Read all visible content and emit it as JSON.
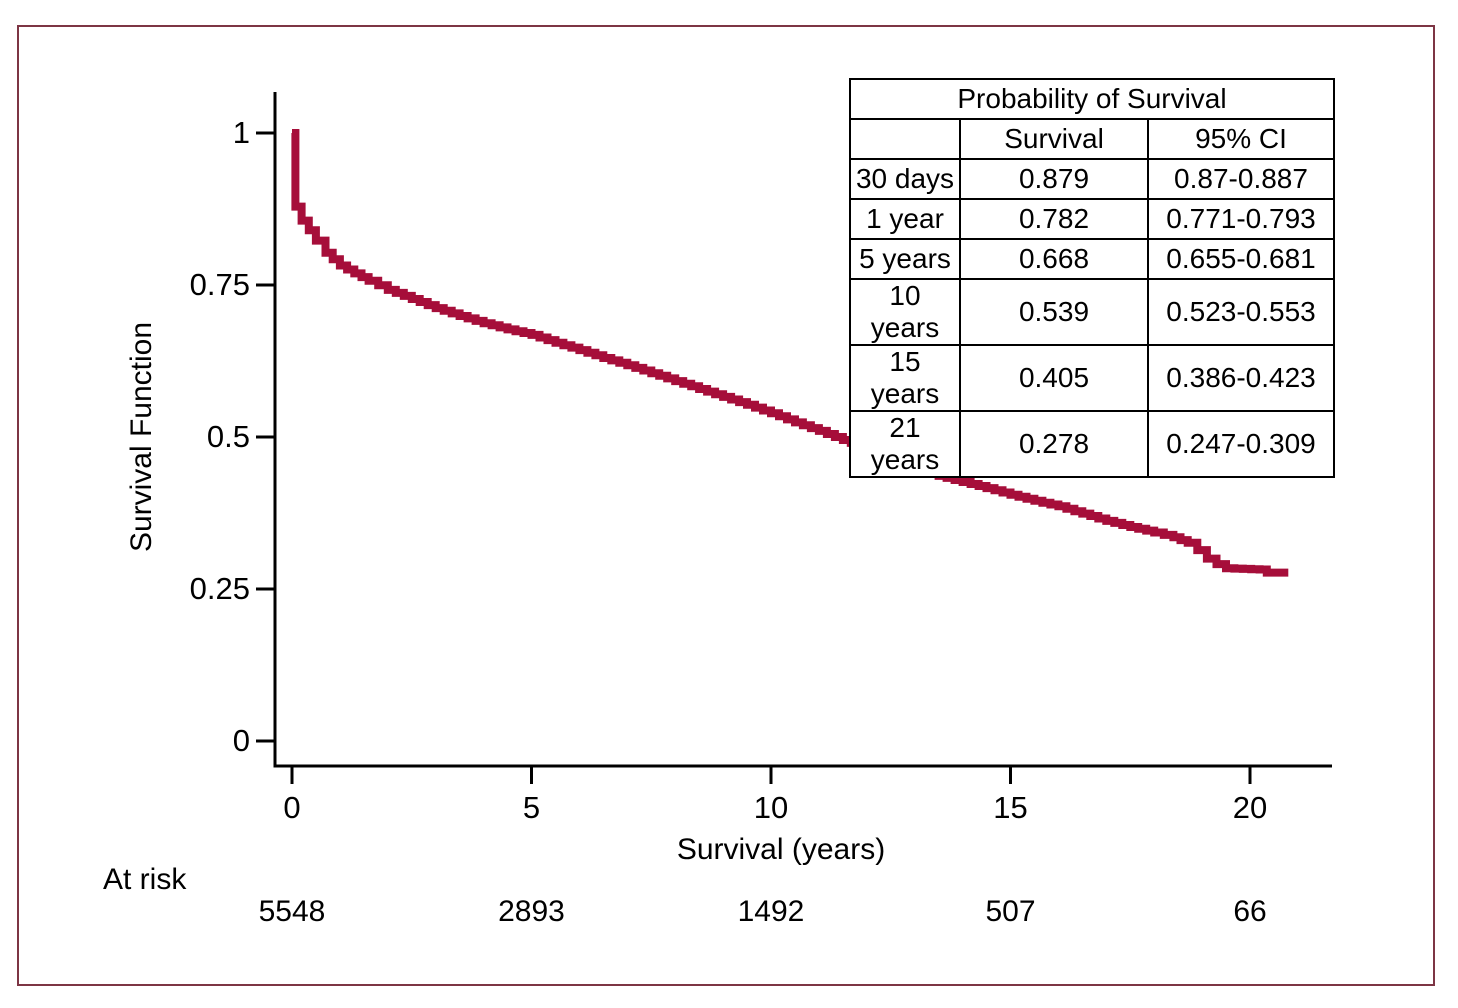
{
  "frame": {
    "border_color": "#7D3544"
  },
  "chart_data": {
    "type": "line",
    "subtype": "kaplan-meier-step",
    "title": "",
    "xlabel": "Survival (years)",
    "ylabel": "Survival Function",
    "xlim": [
      0,
      21.7
    ],
    "ylim": [
      0,
      1.05
    ],
    "x_ticks": [
      0,
      5,
      10,
      15,
      20
    ],
    "y_ticks": [
      0,
      0.25,
      0.5,
      0.75,
      1
    ],
    "y_tick_labels": [
      "0",
      "0.25",
      "0.5",
      "0.75",
      "1"
    ],
    "grid": false,
    "legend": "none",
    "curve_color": "#A60E3A",
    "series": [
      {
        "name": "Survival Function",
        "points": [
          [
            0,
            1.0
          ],
          [
            0.07,
            0.879
          ],
          [
            0.2,
            0.856
          ],
          [
            0.35,
            0.84
          ],
          [
            0.5,
            0.823
          ],
          [
            0.7,
            0.803
          ],
          [
            1,
            0.782
          ],
          [
            1.3,
            0.769
          ],
          [
            1.6,
            0.757
          ],
          [
            2,
            0.742
          ],
          [
            2.5,
            0.727
          ],
          [
            3,
            0.712
          ],
          [
            3.5,
            0.699
          ],
          [
            4,
            0.687
          ],
          [
            4.5,
            0.677
          ],
          [
            5,
            0.668
          ],
          [
            5.5,
            0.655
          ],
          [
            6,
            0.643
          ],
          [
            6.5,
            0.63
          ],
          [
            7,
            0.618
          ],
          [
            7.5,
            0.605
          ],
          [
            8,
            0.592
          ],
          [
            8.5,
            0.579
          ],
          [
            9,
            0.566
          ],
          [
            9.5,
            0.553
          ],
          [
            10,
            0.539
          ],
          [
            10.5,
            0.524
          ],
          [
            11,
            0.51
          ],
          [
            11.5,
            0.495
          ],
          [
            12,
            0.481
          ],
          [
            12.4,
            0.465
          ],
          [
            12.7,
            0.452
          ],
          [
            13,
            0.446
          ],
          [
            13.5,
            0.436
          ],
          [
            14,
            0.426
          ],
          [
            14.5,
            0.416
          ],
          [
            15,
            0.405
          ],
          [
            15.5,
            0.395
          ],
          [
            16,
            0.386
          ],
          [
            16.5,
            0.374
          ],
          [
            17,
            0.362
          ],
          [
            17.5,
            0.352
          ],
          [
            18,
            0.343
          ],
          [
            18.4,
            0.335
          ],
          [
            18.7,
            0.326
          ],
          [
            18.9,
            0.314
          ],
          [
            19.1,
            0.3
          ],
          [
            19.3,
            0.291
          ],
          [
            19.5,
            0.284
          ],
          [
            20.2,
            0.282
          ],
          [
            20.35,
            0.277
          ],
          [
            20.8,
            0.277
          ]
        ]
      }
    ],
    "at_risk": {
      "label": "At risk",
      "times": [
        0,
        5,
        10,
        15,
        20
      ],
      "counts": [
        "5548",
        "2893",
        "1492",
        "507",
        "66"
      ]
    }
  },
  "table": {
    "title": "Probability of Survival",
    "columns": [
      "",
      "Survival",
      "95% CI"
    ],
    "rows": [
      [
        "30 days",
        "0.879",
        "0.87-0.887"
      ],
      [
        "1 year",
        "0.782",
        "0.771-0.793"
      ],
      [
        "5 years",
        "0.668",
        "0.655-0.681"
      ],
      [
        "10 years",
        "0.539",
        "0.523-0.553"
      ],
      [
        "15 years",
        "0.405",
        "0.386-0.423"
      ],
      [
        "21 years",
        "0.278",
        "0.247-0.309"
      ]
    ]
  }
}
